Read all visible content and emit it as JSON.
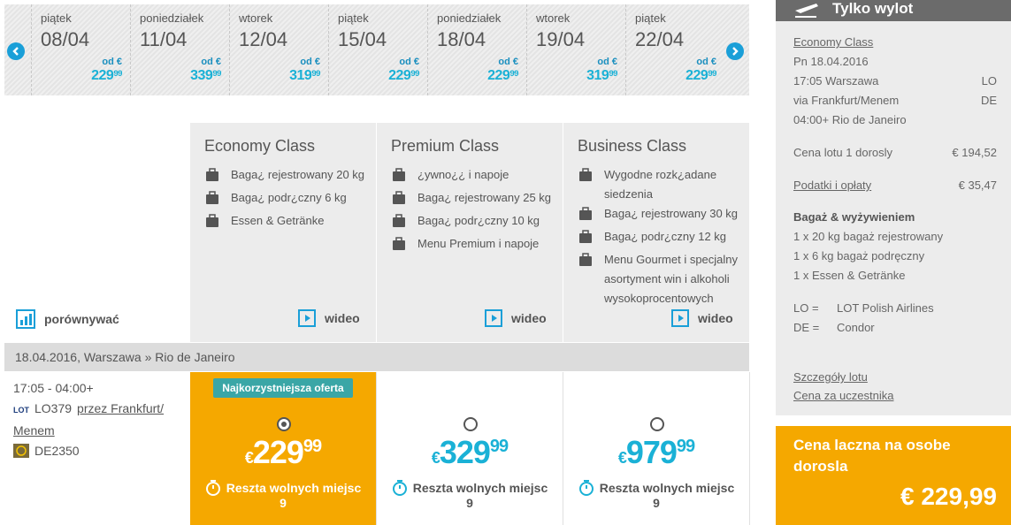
{
  "dates": [
    {
      "weekday": "piątek",
      "date": "08/04",
      "from": "od €",
      "price": "229",
      "cents": "99"
    },
    {
      "weekday": "poniedziałek",
      "date": "11/04",
      "from": "od €",
      "price": "339",
      "cents": "99"
    },
    {
      "weekday": "wtorek",
      "date": "12/04",
      "from": "od €",
      "price": "319",
      "cents": "99"
    },
    {
      "weekday": "piątek",
      "date": "15/04",
      "from": "od €",
      "price": "229",
      "cents": "99"
    },
    {
      "weekday": "poniedziałek",
      "date": "18/04",
      "from": "od €",
      "price": "229",
      "cents": "99"
    },
    {
      "weekday": "wtorek",
      "date": "19/04",
      "from": "od €",
      "price": "319",
      "cents": "99"
    },
    {
      "weekday": "piątek",
      "date": "22/04",
      "from": "od €",
      "price": "229",
      "cents": "99"
    }
  ],
  "compare": "porównywać",
  "classes": [
    {
      "name": "Economy Class",
      "features": [
        "Baga¿ rejestrowany 20 kg",
        "Baga¿ podr¿czny 6 kg",
        "Essen & Getränke"
      ],
      "video": "wideo"
    },
    {
      "name": "Premium Class",
      "features": [
        "¿ywno¿¿ i napoje",
        "Baga¿ rejestrowany 25 kg",
        "Baga¿ podr¿czny 10 kg",
        "Menu Premium i napoje"
      ],
      "video": "wideo"
    },
    {
      "name": "Business Class",
      "features": [
        "Wygodne rozk¿adane siedzenia",
        "Baga¿ rejestrowany 30 kg",
        "Baga¿ podr¿czny 12 kg",
        "Menu Gourmet i specjalny asortyment win i alkoholi wysokoprocentowych"
      ],
      "video": "wideo"
    }
  ],
  "route": "18.04.2016, Warszawa » Rio de Janeiro",
  "flight": {
    "time": "17:05 - 04:00+",
    "segments": [
      {
        "logo": "LOT",
        "code": "LO379",
        "via": "przez Frankfurt/ Menem"
      },
      {
        "code": "DE2350"
      }
    ]
  },
  "selected_offer": 0,
  "offers": [
    {
      "badge": "Najkorzystniejsza oferta",
      "currency": "€",
      "price": "229",
      "cents": "99",
      "seats_label": "Reszta wolnych miejsc",
      "seats": "9"
    },
    {
      "currency": "€",
      "price": "329",
      "cents": "99",
      "seats_label": "Reszta wolnych miejsc",
      "seats": "9"
    },
    {
      "currency": "€",
      "price": "979",
      "cents": "99",
      "seats_label": "Reszta wolnych miejsc",
      "seats": "9"
    }
  ],
  "summary": {
    "title": "Tylko wylot",
    "class_link": "Economy Class",
    "date": "Pn 18.04.2016",
    "legs": [
      {
        "text": "17:05 Warszawa",
        "code": "LO"
      },
      {
        "text": "via Frankfurt/Menem",
        "code": "DE"
      },
      {
        "text": "04:00+ Rio de Janeiro"
      }
    ],
    "prices": [
      {
        "label": "Cena lotu 1 dorosly",
        "value": "€ 194,52",
        "link": false
      },
      {
        "label": "Podatki i opłaty",
        "value": "€ 35,47",
        "link": true
      }
    ],
    "baggage_title": "Bagaż & wyżywieniem",
    "baggage": [
      "1 x 20 kg bagaż rejestrowany",
      "1 x 6 kg bagaż podręczny",
      "1 x Essen & Getränke"
    ],
    "airlines": [
      {
        "code": "LO =",
        "name": "LOT Polish Airlines"
      },
      {
        "code": "DE =",
        "name": "Condor"
      }
    ],
    "links": [
      "Szczegóły lotu",
      "Cena za uczestnika"
    ],
    "total_label": "Cena laczna na osobe dorosla",
    "total": "€ 229,99"
  }
}
